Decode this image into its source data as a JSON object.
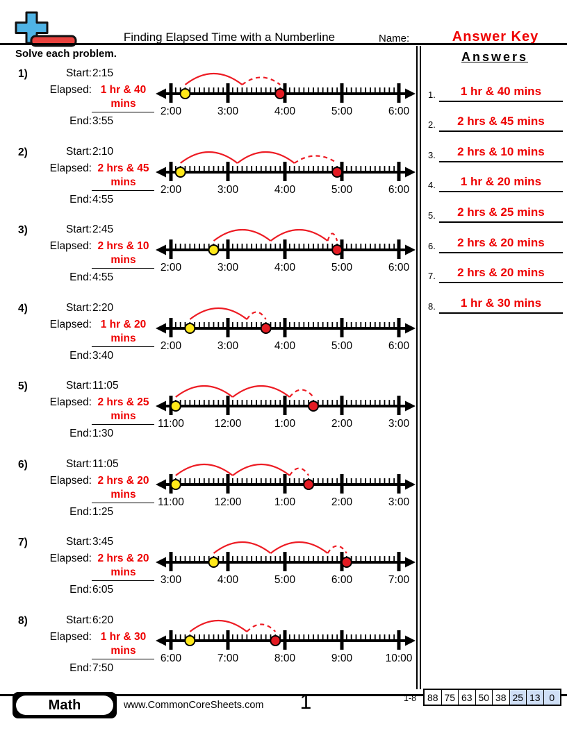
{
  "header": {
    "title": "Finding Elapsed Time with a Numberline",
    "name_label": "Name:",
    "name_value": "Answer Key",
    "instructions": "Solve each problem."
  },
  "answers_panel": {
    "title": "Answers",
    "items": [
      {
        "number": "1.",
        "text": "1 hr & 40 mins"
      },
      {
        "number": "2.",
        "text": "2 hrs & 45 mins"
      },
      {
        "number": "3.",
        "text": "2 hrs & 10 mins"
      },
      {
        "number": "4.",
        "text": "1 hr & 20 mins"
      },
      {
        "number": "5.",
        "text": "2 hrs & 25 mins"
      },
      {
        "number": "6.",
        "text": "2 hrs & 20 mins"
      },
      {
        "number": "7.",
        "text": "2 hrs & 20 mins"
      },
      {
        "number": "8.",
        "text": "1 hr & 30 mins"
      }
    ]
  },
  "problems": [
    {
      "number": "1)",
      "start_label": "Start:",
      "start": "2:15",
      "elapsed_label": "Elapsed:",
      "elapsed": "1 hr & 40 mins",
      "end_label": "End:",
      "end": "3:55",
      "numberline": {
        "labels": [
          "2:00",
          "3:00",
          "4:00",
          "5:00",
          "6:00"
        ],
        "start_t": 0.25,
        "end_t": 1.9167,
        "full_hours": 1
      }
    },
    {
      "number": "2)",
      "start_label": "Start:",
      "start": "2:10",
      "elapsed_label": "Elapsed:",
      "elapsed": "2 hrs & 45 mins",
      "end_label": "End:",
      "end": "4:55",
      "numberline": {
        "labels": [
          "2:00",
          "3:00",
          "4:00",
          "5:00",
          "6:00"
        ],
        "start_t": 0.1667,
        "end_t": 2.9167,
        "full_hours": 2
      }
    },
    {
      "number": "3)",
      "start_label": "Start:",
      "start": "2:45",
      "elapsed_label": "Elapsed:",
      "elapsed": "2 hrs & 10 mins",
      "end_label": "End:",
      "end": "4:55",
      "numberline": {
        "labels": [
          "2:00",
          "3:00",
          "4:00",
          "5:00",
          "6:00"
        ],
        "start_t": 0.75,
        "end_t": 2.9167,
        "full_hours": 2
      }
    },
    {
      "number": "4)",
      "start_label": "Start:",
      "start": "2:20",
      "elapsed_label": "Elapsed:",
      "elapsed": "1 hr & 20 mins",
      "end_label": "End:",
      "end": "3:40",
      "numberline": {
        "labels": [
          "2:00",
          "3:00",
          "4:00",
          "5:00",
          "6:00"
        ],
        "start_t": 0.3333,
        "end_t": 1.6667,
        "full_hours": 1
      }
    },
    {
      "number": "5)",
      "start_label": "Start:",
      "start": "11:05",
      "elapsed_label": "Elapsed:",
      "elapsed": "2 hrs & 25 mins",
      "end_label": "End:",
      "end": "1:30",
      "numberline": {
        "labels": [
          "11:00",
          "12:00",
          "1:00",
          "2:00",
          "3:00"
        ],
        "start_t": 0.0833,
        "end_t": 2.5,
        "full_hours": 2
      }
    },
    {
      "number": "6)",
      "start_label": "Start:",
      "start": "11:05",
      "elapsed_label": "Elapsed:",
      "elapsed": "2 hrs & 20 mins",
      "end_label": "End:",
      "end": "1:25",
      "numberline": {
        "labels": [
          "11:00",
          "12:00",
          "1:00",
          "2:00",
          "3:00"
        ],
        "start_t": 0.0833,
        "end_t": 2.4167,
        "full_hours": 2
      }
    },
    {
      "number": "7)",
      "start_label": "Start:",
      "start": "3:45",
      "elapsed_label": "Elapsed:",
      "elapsed": "2 hrs & 20 mins",
      "end_label": "End:",
      "end": "6:05",
      "numberline": {
        "labels": [
          "3:00",
          "4:00",
          "5:00",
          "6:00",
          "7:00"
        ],
        "start_t": 0.75,
        "end_t": 3.0833,
        "full_hours": 2
      }
    },
    {
      "number": "8)",
      "start_label": "Start:",
      "start": "6:20",
      "elapsed_label": "Elapsed:",
      "elapsed": "1 hr & 30 mins",
      "end_label": "End:",
      "end": "7:50",
      "numberline": {
        "labels": [
          "6:00",
          "7:00",
          "8:00",
          "9:00",
          "10:00"
        ],
        "start_t": 0.3333,
        "end_t": 1.8333,
        "full_hours": 1
      }
    }
  ],
  "footer": {
    "badge": "Math",
    "website": "www.CommonCoreSheets.com",
    "page_number": "1",
    "score_range": "1-8",
    "scores": [
      "88",
      "75",
      "63",
      "50",
      "38",
      "25",
      "13",
      "0"
    ],
    "highlighted_scores": [
      "25",
      "13",
      "0"
    ]
  },
  "colors": {
    "answer_red": "#ee0000",
    "arc_red": "#ed1c24",
    "dot_start_yellow": "#ffe81a",
    "dot_end_red": "#e31b23",
    "logo_blue": "#4fb3e5",
    "logo_red": "#e9423e",
    "score_highlight": "#cfdff6"
  }
}
